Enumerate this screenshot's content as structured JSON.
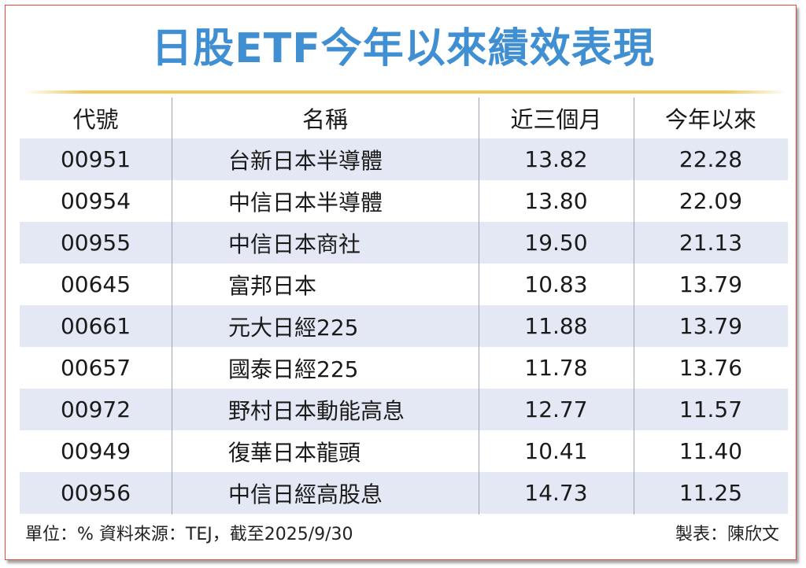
{
  "title": "日股ETF今年以來績效表現",
  "colors": {
    "title": "#3f8fd2",
    "accent_line": "#efc85a",
    "row_shade": "#e4e8f4",
    "border": "#e8453c"
  },
  "table": {
    "headers": [
      "代號",
      "名稱",
      "近三個月",
      "今年以來"
    ],
    "rows": [
      {
        "code": "00951",
        "name": "台新日本半導體",
        "three_month": "13.82",
        "ytd": "22.28"
      },
      {
        "code": "00954",
        "name": "中信日本半導體",
        "three_month": "13.80",
        "ytd": "22.09"
      },
      {
        "code": "00955",
        "name": "中信日本商社",
        "three_month": "19.50",
        "ytd": "21.13"
      },
      {
        "code": "00645",
        "name": "富邦日本",
        "three_month": "10.83",
        "ytd": "13.79"
      },
      {
        "code": "00661",
        "name": "元大日經225",
        "three_month": "11.88",
        "ytd": "13.79"
      },
      {
        "code": "00657",
        "name": "國泰日經225",
        "three_month": "11.78",
        "ytd": "13.76"
      },
      {
        "code": "00972",
        "name": "野村日本動能高息",
        "three_month": "12.77",
        "ytd": "11.57"
      },
      {
        "code": "00949",
        "name": "復華日本龍頭",
        "three_month": "10.41",
        "ytd": "11.40"
      },
      {
        "code": "00956",
        "name": "中信日經高股息",
        "three_month": "14.73",
        "ytd": "11.25"
      }
    ]
  },
  "footer": {
    "source": "單位：%  資料來源：TEJ，截至2025/9/30",
    "author": "製表：陳欣文"
  }
}
